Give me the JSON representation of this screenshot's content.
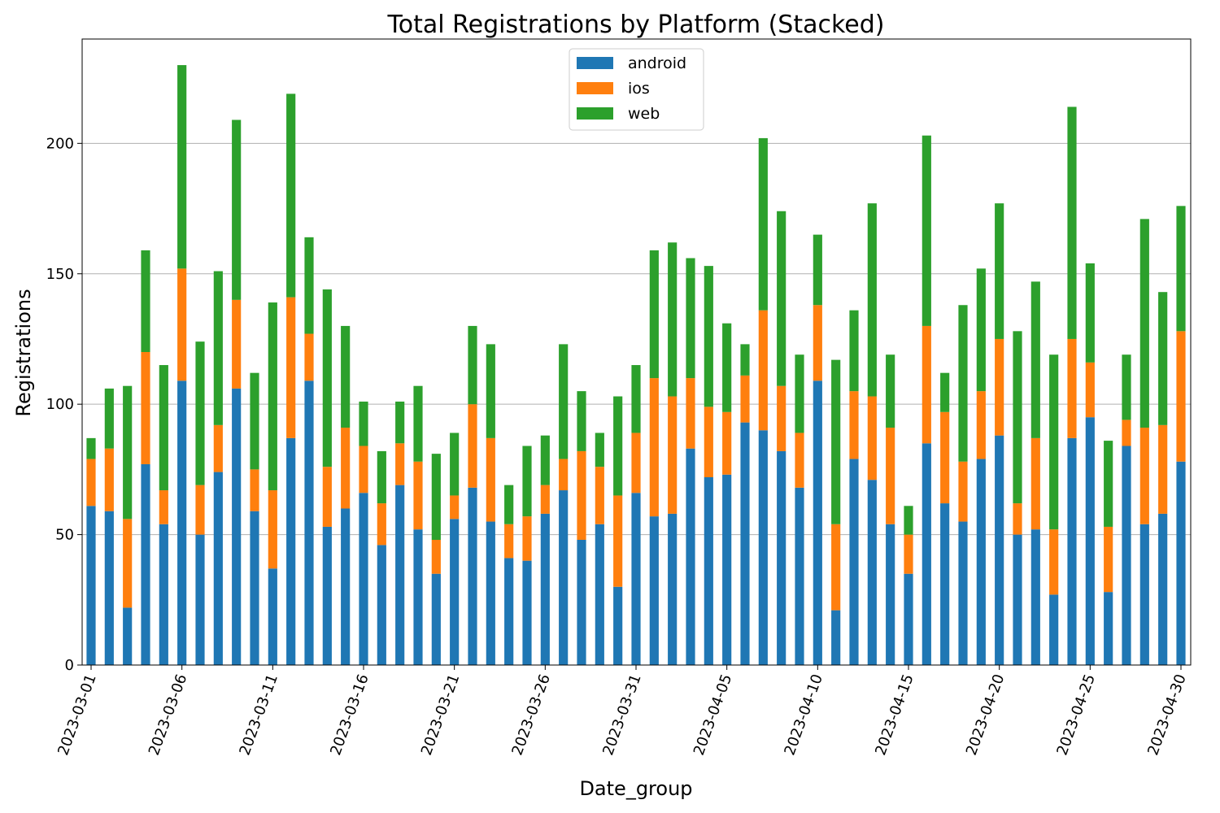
{
  "chart_data": {
    "type": "bar",
    "stacked": true,
    "title": "Total Registrations by Platform (Stacked)",
    "xlabel": "Date_group",
    "ylabel": "Registrations",
    "ylim": [
      0,
      240
    ],
    "yticks": [
      0,
      50,
      100,
      150,
      200
    ],
    "grid": "horizontal",
    "legend_position": "top-center",
    "categories": [
      "2023-03-01",
      "2023-03-02",
      "2023-03-03",
      "2023-03-04",
      "2023-03-05",
      "2023-03-06",
      "2023-03-07",
      "2023-03-08",
      "2023-03-09",
      "2023-03-10",
      "2023-03-11",
      "2023-03-12",
      "2023-03-13",
      "2023-03-14",
      "2023-03-15",
      "2023-03-16",
      "2023-03-17",
      "2023-03-18",
      "2023-03-19",
      "2023-03-20",
      "2023-03-21",
      "2023-03-22",
      "2023-03-23",
      "2023-03-24",
      "2023-03-25",
      "2023-03-26",
      "2023-03-27",
      "2023-03-28",
      "2023-03-29",
      "2023-03-30",
      "2023-03-31",
      "2023-04-01",
      "2023-04-02",
      "2023-04-03",
      "2023-04-04",
      "2023-04-05",
      "2023-04-06",
      "2023-04-07",
      "2023-04-08",
      "2023-04-09",
      "2023-04-10",
      "2023-04-11",
      "2023-04-12",
      "2023-04-13",
      "2023-04-14",
      "2023-04-15",
      "2023-04-16",
      "2023-04-17",
      "2023-04-18",
      "2023-04-19",
      "2023-04-20",
      "2023-04-21",
      "2023-04-22",
      "2023-04-23",
      "2023-04-24",
      "2023-04-25",
      "2023-04-26",
      "2023-04-27",
      "2023-04-28",
      "2023-04-29",
      "2023-04-30"
    ],
    "xtick_labels": [
      "2023-03-01",
      "2023-03-06",
      "2023-03-11",
      "2023-03-16",
      "2023-03-21",
      "2023-03-26",
      "2023-03-31",
      "2023-04-05",
      "2023-04-10",
      "2023-04-15",
      "2023-04-20",
      "2023-04-25",
      "2023-04-30"
    ],
    "series": [
      {
        "name": "android",
        "color": "#1f77b4",
        "values": [
          61,
          59,
          22,
          77,
          54,
          109,
          50,
          74,
          106,
          59,
          37,
          87,
          109,
          53,
          60,
          66,
          46,
          69,
          52,
          35,
          56,
          68,
          55,
          41,
          40,
          58,
          67,
          48,
          54,
          30,
          66,
          57,
          58,
          83,
          72,
          73,
          93,
          90,
          82,
          68,
          109,
          21,
          79,
          71,
          54,
          35,
          85,
          62,
          55,
          79,
          88,
          50,
          52,
          27,
          87,
          95,
          28,
          84,
          54,
          58,
          78
        ]
      },
      {
        "name": "ios",
        "color": "#ff7f0e",
        "values": [
          18,
          24,
          34,
          43,
          13,
          43,
          19,
          18,
          34,
          16,
          30,
          54,
          18,
          23,
          31,
          18,
          16,
          16,
          26,
          13,
          9,
          32,
          32,
          13,
          17,
          11,
          12,
          34,
          22,
          35,
          23,
          53,
          45,
          27,
          27,
          24,
          18,
          46,
          25,
          21,
          29,
          33,
          26,
          32,
          37,
          15,
          45,
          35,
          23,
          26,
          37,
          12,
          35,
          25,
          38,
          21,
          25,
          10,
          37,
          34,
          50
        ]
      },
      {
        "name": "web",
        "color": "#2ca02c",
        "values": [
          8,
          23,
          51,
          39,
          48,
          78,
          55,
          59,
          69,
          37,
          72,
          78,
          37,
          68,
          39,
          17,
          20,
          16,
          29,
          33,
          24,
          30,
          36,
          15,
          27,
          19,
          44,
          23,
          13,
          38,
          26,
          49,
          59,
          46,
          54,
          34,
          12,
          66,
          67,
          30,
          27,
          63,
          31,
          74,
          28,
          11,
          73,
          15,
          60,
          47,
          52,
          66,
          60,
          67,
          89,
          38,
          33,
          25,
          80,
          51,
          48
        ]
      }
    ]
  }
}
